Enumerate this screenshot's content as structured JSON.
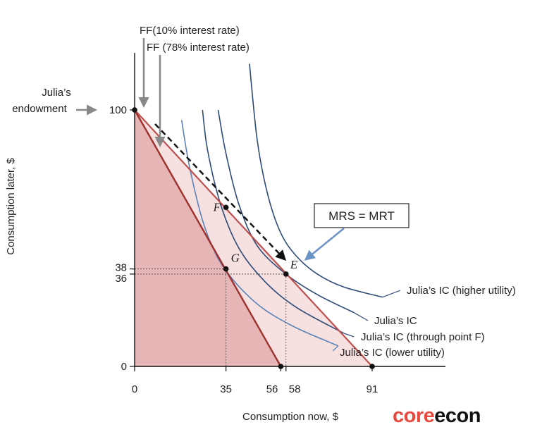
{
  "chart_data": {
    "type": "line",
    "title": "",
    "xlabel": "Consumption now, $",
    "ylabel": "Consumption later, $",
    "xlim": [
      0,
      120
    ],
    "ylim": [
      0,
      120
    ],
    "x_ticks": [
      {
        "value": 0,
        "label": "0"
      },
      {
        "value": 35,
        "label": "35"
      },
      {
        "value": 56,
        "label": "56"
      },
      {
        "value": 58,
        "label": "58"
      },
      {
        "value": 91,
        "label": "91"
      }
    ],
    "y_ticks": [
      {
        "value": 0,
        "label": "0"
      },
      {
        "value": 36,
        "label": "36"
      },
      {
        "value": 38,
        "label": "38"
      },
      {
        "value": 100,
        "label": "100"
      }
    ],
    "feasible_frontiers": [
      {
        "name": "FF(10% interest rate)",
        "x": [
          0,
          91
        ],
        "y": [
          100,
          0
        ],
        "color": "#c0504d"
      },
      {
        "name": "FF (78% interest rate)",
        "x": [
          0,
          56
        ],
        "y": [
          100,
          0
        ],
        "color": "#a0302d"
      }
    ],
    "indifference_curves": [
      {
        "name": "Julia’s IC (higher utility)",
        "color": "#2e4a78",
        "x": [
          44,
          47,
          51,
          56,
          62,
          70,
          80,
          95
        ],
        "y": [
          118,
          88,
          67,
          52,
          43,
          36,
          31,
          27
        ]
      },
      {
        "name": "Julia’s IC",
        "color": "#2e4a78",
        "x": [
          32,
          35,
          40,
          47,
          58,
          70,
          84
        ],
        "y": [
          100,
          83,
          63,
          47,
          36,
          28,
          21
        ]
      },
      {
        "name": "Julia’s IC (through point F)",
        "color": "#2e4a78",
        "x": [
          26,
          28,
          33,
          40,
          50,
          62,
          80
        ],
        "y": [
          100,
          84,
          63,
          46,
          33,
          23,
          13
        ]
      },
      {
        "name": "Julia’s IC (lower utility)",
        "color": "#5b82b8",
        "x": [
          18,
          21,
          26,
          31,
          36,
          42,
          50,
          62,
          78
        ],
        "y": [
          96,
          78,
          57,
          44,
          36,
          29,
          22,
          15,
          8
        ]
      }
    ],
    "points": [
      {
        "label": "",
        "x": 0,
        "y": 100
      },
      {
        "label": "F",
        "x": 35,
        "y": 62
      },
      {
        "label": "G",
        "x": 35,
        "y": 38
      },
      {
        "label": "E",
        "x": 58,
        "y": 36
      },
      {
        "label": "",
        "x": 56,
        "y": 0
      },
      {
        "label": "",
        "x": 91,
        "y": 0
      }
    ],
    "annotations": {
      "endowment": "Julia’s\nendowment",
      "ff10": "FF(10% interest rate)",
      "ff78": "FF (78% interest rate)",
      "mrs_mrt": "MRS = MRT"
    }
  },
  "colors": {
    "ff_dark": "#a0302d",
    "ff_light": "#c0504d",
    "fill_dark": "#e5b6b5",
    "fill_light": "#f6e0e0",
    "ic": "#2e4a78",
    "ic_light": "#5b82b8",
    "arrow_grey": "#888888",
    "mrs_arrow": "#6b93c8"
  },
  "logo": {
    "part1": "core",
    "part2": "econ"
  }
}
